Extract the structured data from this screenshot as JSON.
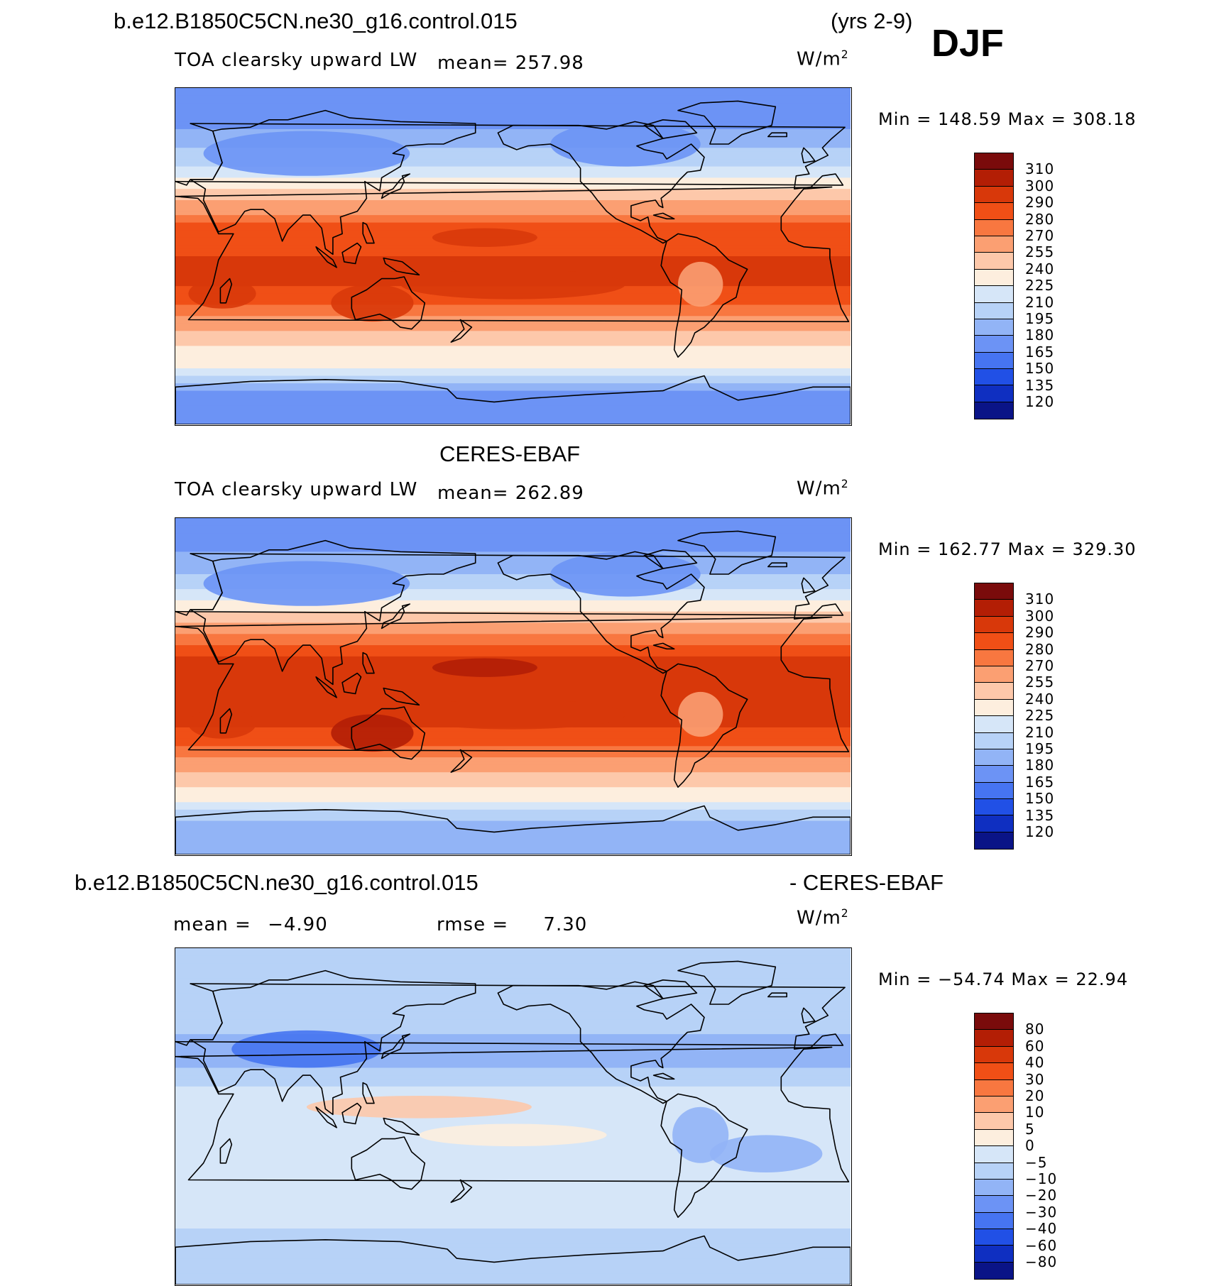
{
  "header": {
    "case_name": "b.e12.B1850C5CN.ne30_g16.control.015",
    "years": "(yrs 2-9)",
    "season": "DJF"
  },
  "units": "W/m",
  "units_sup": "2",
  "panels": [
    {
      "id": "model",
      "title": "",
      "variable": "TOA clearsky upward LW",
      "mean_label": "mean=",
      "mean_value": "257.98",
      "min_max": "Min  =  148.59  Max  =  308.18",
      "scale": "abs"
    },
    {
      "id": "obs",
      "title": "CERES-EBAF",
      "variable": "TOA clearsky upward LW",
      "mean_label": "mean=",
      "mean_value": "262.89",
      "min_max": "Min  =  162.77  Max  =  329.30",
      "scale": "abs"
    },
    {
      "id": "diff",
      "title_left": "b.e12.B1850C5CN.ne30_g16.control.015",
      "title_right": "- CERES-EBAF",
      "mean_label": "mean  =",
      "mean_value": "−4.90",
      "rmse_label": "rmse  =",
      "rmse_value": "7.30",
      "min_max": "Min  = −54.74  Max  =    22.94",
      "scale": "diff"
    }
  ],
  "colorbars": {
    "abs": {
      "colors": [
        "#7a0b0b",
        "#b31e05",
        "#d8380a",
        "#f04f16",
        "#f87740",
        "#fb9f72",
        "#fdc8aa",
        "#fdeede",
        "#d6e6f8",
        "#b7d2f7",
        "#92b4f6",
        "#6c93f5",
        "#4674f1",
        "#2150e6",
        "#0f2fc1",
        "#0a1487"
      ],
      "ticks": [
        "310",
        "300",
        "290",
        "280",
        "270",
        "255",
        "240",
        "225",
        "210",
        "195",
        "180",
        "165",
        "150",
        "135",
        "120"
      ]
    },
    "diff": {
      "colors": [
        "#7a0b0b",
        "#b31e05",
        "#d8380a",
        "#f04f16",
        "#f87740",
        "#fb9f72",
        "#fdc8aa",
        "#fdeede",
        "#d6e6f8",
        "#b7d2f7",
        "#92b4f6",
        "#6c93f5",
        "#4674f1",
        "#2150e6",
        "#0f2fc1",
        "#0a1487"
      ],
      "ticks": [
        "80",
        "60",
        "40",
        "30",
        "20",
        "10",
        "5",
        "0",
        "−5",
        "−10",
        "−20",
        "−30",
        "−40",
        "−60",
        "−80"
      ]
    }
  },
  "field_data": {
    "type": "lat-lon contour map",
    "projection": "cylindrical equidistant, centered on Pacific",
    "model": {
      "lat": [
        80,
        60,
        45,
        30,
        15,
        0,
        -15,
        -30,
        -45,
        -60,
        -75
      ],
      "zonal_values": [
        165,
        190,
        215,
        255,
        285,
        290,
        290,
        275,
        245,
        225,
        170
      ]
    },
    "obs": {
      "lat": [
        80,
        60,
        45,
        30,
        15,
        0,
        -15,
        -30,
        -45,
        -60,
        -75
      ],
      "zonal_values": [
        170,
        195,
        225,
        265,
        290,
        295,
        295,
        285,
        255,
        230,
        185
      ]
    },
    "diff": {
      "lat": [
        80,
        60,
        45,
        30,
        15,
        0,
        -15,
        -30,
        -45,
        -60,
        -75
      ],
      "zonal_values": [
        -10,
        -8,
        -10,
        -12,
        -5,
        -3,
        -5,
        -3,
        -3,
        -5,
        -8
      ]
    }
  }
}
